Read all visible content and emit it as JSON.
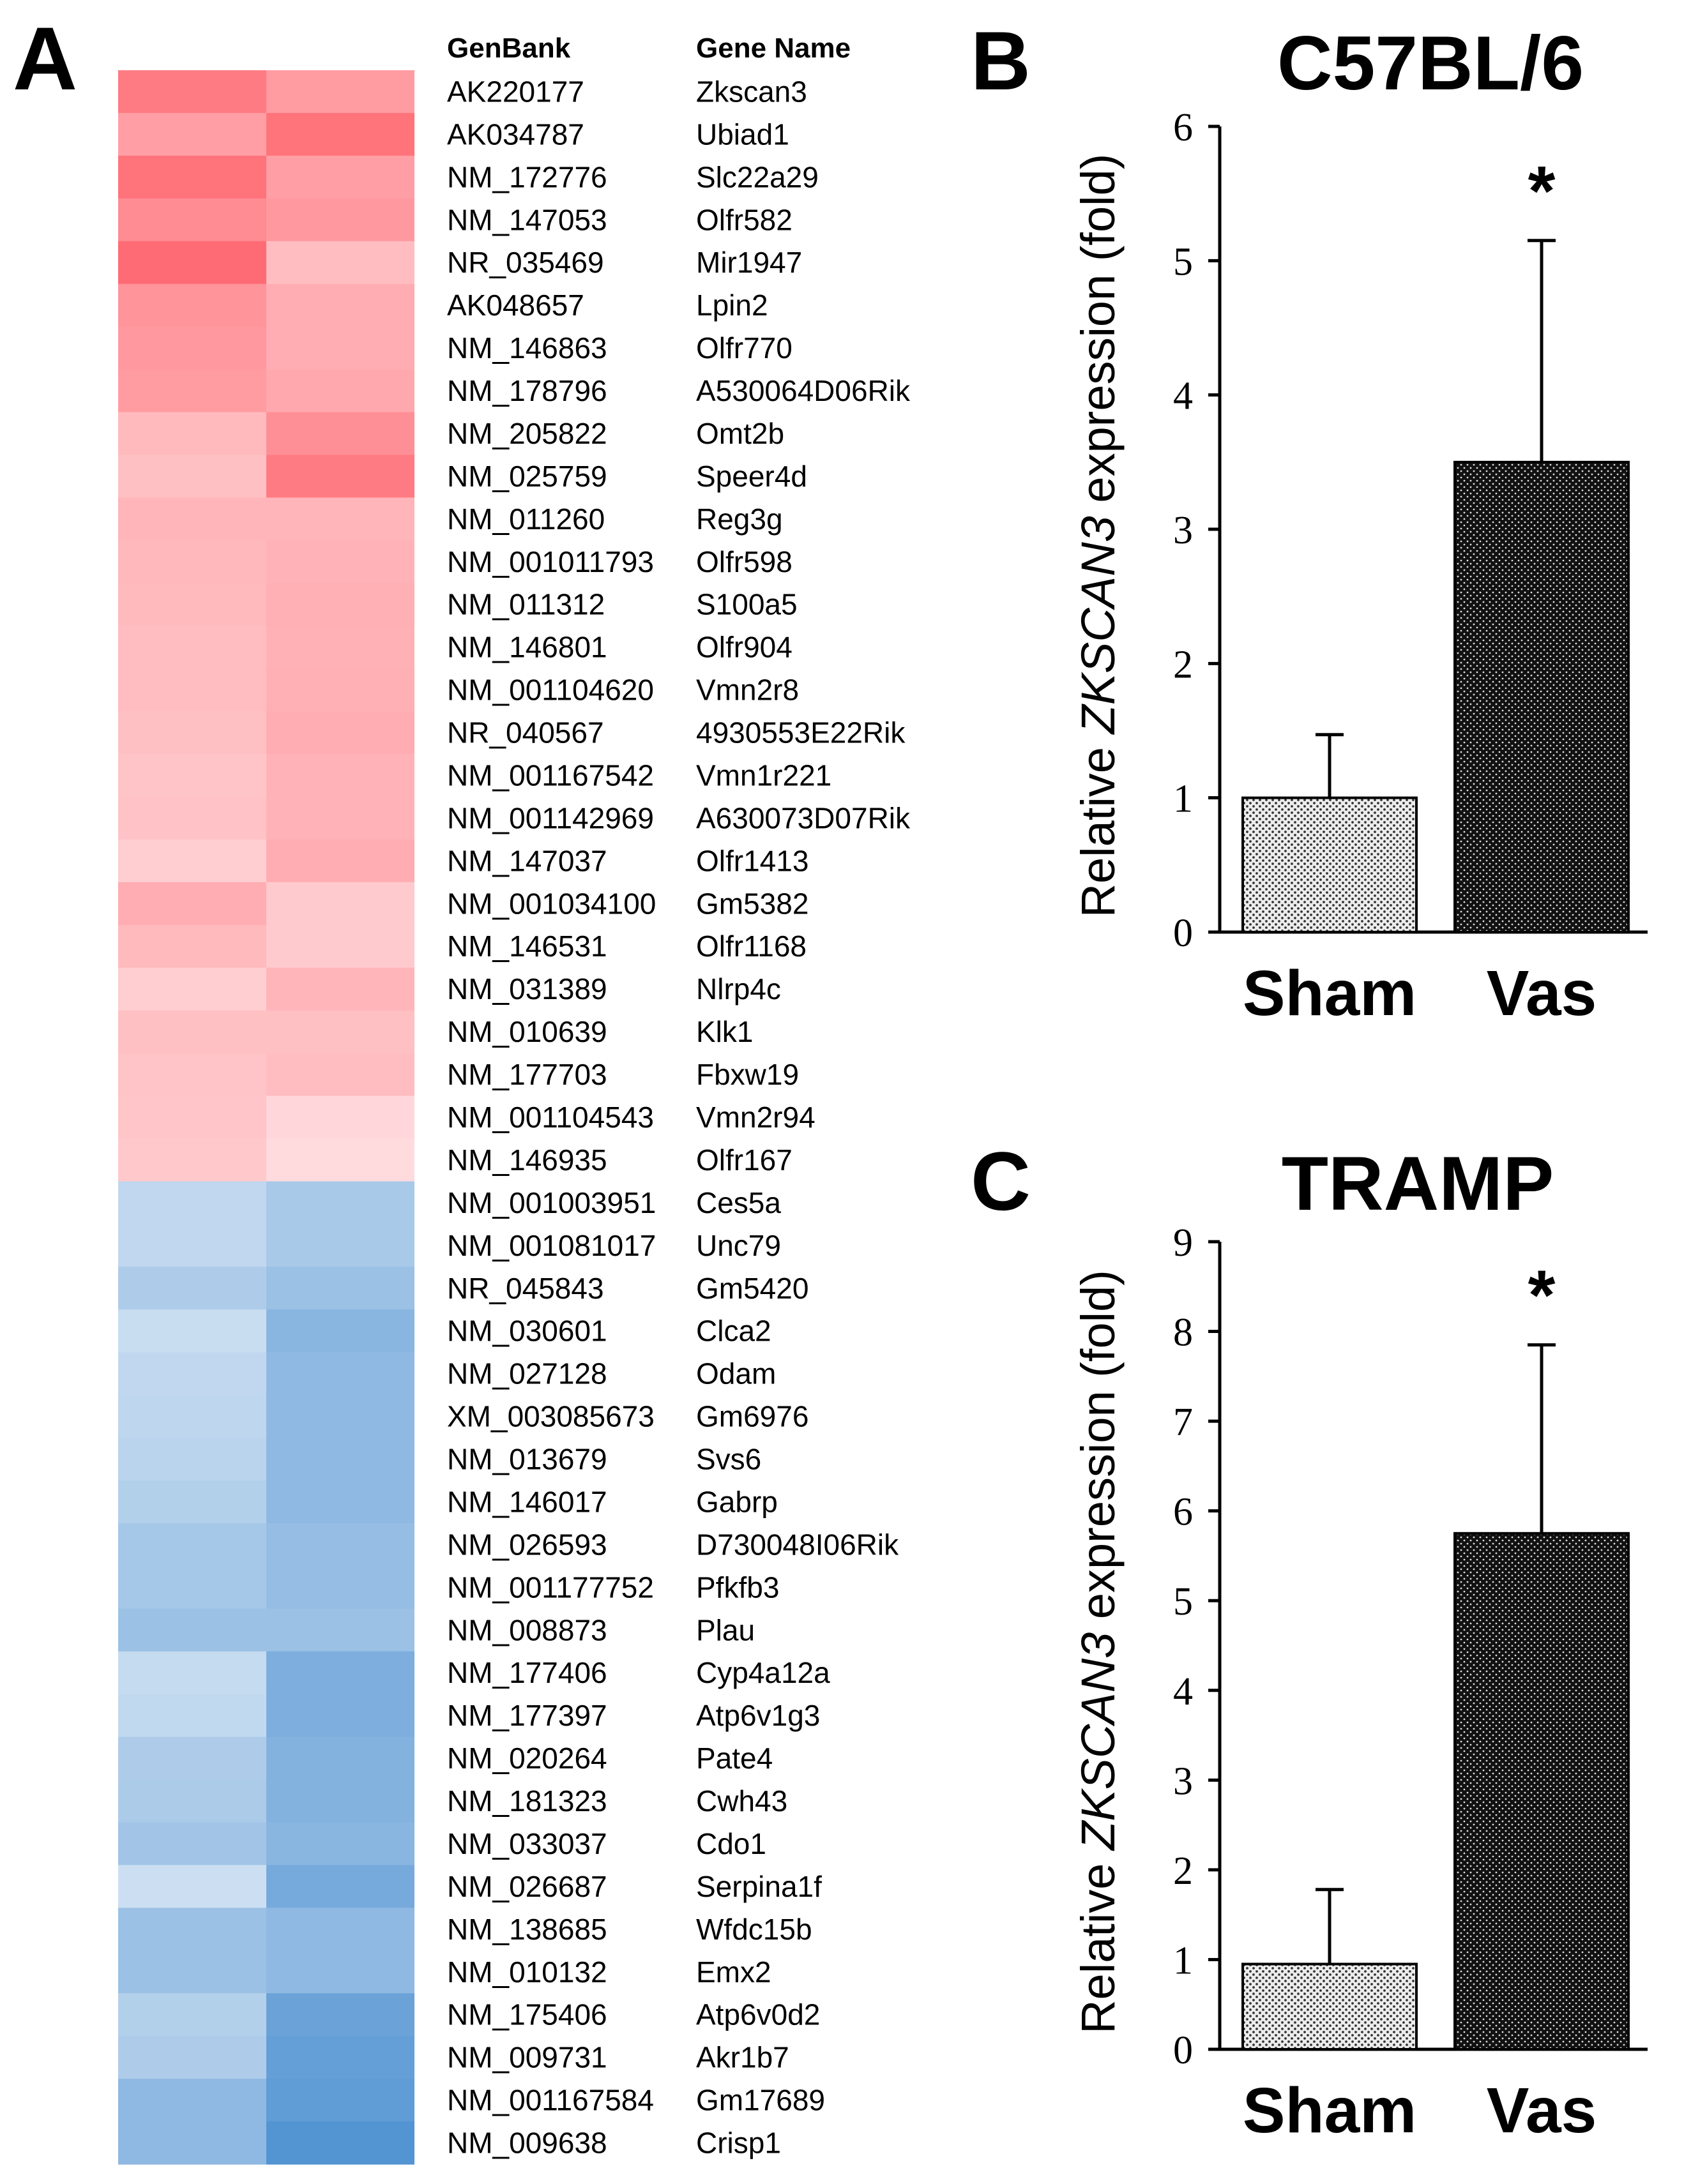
{
  "chart_data": [
    {
      "type": "heatmap",
      "panel_label": "A",
      "columns_header": {
        "genbank": "GenBank",
        "gene_name": "Gene Name"
      },
      "rows": [
        {
          "genbank": "AK220177",
          "gene": "Zkscan3",
          "values": [
            0.8,
            0.6
          ]
        },
        {
          "genbank": "AK034787",
          "gene": "Ubiad1",
          "values": [
            0.58,
            0.85
          ]
        },
        {
          "genbank": "NM_172776",
          "gene": "Slc22a29",
          "values": [
            0.85,
            0.58
          ]
        },
        {
          "genbank": "NM_147053",
          "gene": "Olfr582",
          "values": [
            0.7,
            0.62
          ]
        },
        {
          "genbank": "NR_035469",
          "gene": "Mir1947",
          "values": [
            0.9,
            0.4
          ]
        },
        {
          "genbank": "AK048657",
          "gene": "Lpin2",
          "values": [
            0.65,
            0.5
          ]
        },
        {
          "genbank": "NM_146863",
          "gene": "Olfr770",
          "values": [
            0.62,
            0.5
          ]
        },
        {
          "genbank": "NM_178796",
          "gene": "A530064D06Rik",
          "values": [
            0.6,
            0.52
          ]
        },
        {
          "genbank": "NM_205822",
          "gene": "Omt2b",
          "values": [
            0.42,
            0.68
          ]
        },
        {
          "genbank": "NM_025759",
          "gene": "Speer4d",
          "values": [
            0.38,
            0.8
          ]
        },
        {
          "genbank": "NM_011260",
          "gene": "Reg3g",
          "values": [
            0.45,
            0.45
          ]
        },
        {
          "genbank": "NM_001011793",
          "gene": "Olfr598",
          "values": [
            0.43,
            0.46
          ]
        },
        {
          "genbank": "NM_011312",
          "gene": "S100a5",
          "values": [
            0.42,
            0.48
          ]
        },
        {
          "genbank": "NM_146801",
          "gene": "Olfr904",
          "values": [
            0.4,
            0.47
          ]
        },
        {
          "genbank": "NM_001104620",
          "gene": "Vmn2r8",
          "values": [
            0.4,
            0.48
          ]
        },
        {
          "genbank": "NR_040567",
          "gene": "4930553E22Rik",
          "values": [
            0.38,
            0.5
          ]
        },
        {
          "genbank": "NM_001167542",
          "gene": "Vmn1r221",
          "values": [
            0.36,
            0.46
          ]
        },
        {
          "genbank": "NM_001142969",
          "gene": "A630073D07Rik",
          "values": [
            0.37,
            0.46
          ]
        },
        {
          "genbank": "NM_147037",
          "gene": "Olfr1413",
          "values": [
            0.3,
            0.5
          ]
        },
        {
          "genbank": "NM_001034100",
          "gene": "Gm5382",
          "values": [
            0.5,
            0.32
          ]
        },
        {
          "genbank": "NM_146531",
          "gene": "Olfr1168",
          "values": [
            0.42,
            0.32
          ]
        },
        {
          "genbank": "NM_031389",
          "gene": "Nlrp4c",
          "values": [
            0.3,
            0.45
          ]
        },
        {
          "genbank": "NM_010639",
          "gene": "Klk1",
          "values": [
            0.38,
            0.38
          ]
        },
        {
          "genbank": "NM_177703",
          "gene": "Fbxw19",
          "values": [
            0.36,
            0.4
          ]
        },
        {
          "genbank": "NM_001104543",
          "gene": "Vmn2r94",
          "values": [
            0.35,
            0.24
          ]
        },
        {
          "genbank": "NM_146935",
          "gene": "Olfr167",
          "values": [
            0.33,
            0.22
          ]
        },
        {
          "genbank": "NM_001003951",
          "gene": "Ces5a",
          "values": [
            -0.35,
            -0.48
          ]
        },
        {
          "genbank": "NM_001081017",
          "gene": "Unc79",
          "values": [
            -0.35,
            -0.48
          ]
        },
        {
          "genbank": "NR_045843",
          "gene": "Gm5420",
          "values": [
            -0.45,
            -0.55
          ]
        },
        {
          "genbank": "NM_030601",
          "gene": "Clca2",
          "values": [
            -0.3,
            -0.65
          ]
        },
        {
          "genbank": "NM_027128",
          "gene": "Odam",
          "values": [
            -0.35,
            -0.62
          ]
        },
        {
          "genbank": "XM_003085673",
          "gene": "Gm6976",
          "values": [
            -0.36,
            -0.62
          ]
        },
        {
          "genbank": "NM_013679",
          "gene": "Svs6",
          "values": [
            -0.38,
            -0.62
          ]
        },
        {
          "genbank": "NM_146017",
          "gene": "Gabrp",
          "values": [
            -0.42,
            -0.62
          ]
        },
        {
          "genbank": "NM_026593",
          "gene": "D730048I06Rik",
          "values": [
            -0.5,
            -0.58
          ]
        },
        {
          "genbank": "NM_001177752",
          "gene": "Pfkfb3",
          "values": [
            -0.5,
            -0.58
          ]
        },
        {
          "genbank": "NM_008873",
          "gene": "Plau",
          "values": [
            -0.55,
            -0.55
          ]
        },
        {
          "genbank": "NM_177406",
          "gene": "Cyp4a12a",
          "values": [
            -0.32,
            -0.72
          ]
        },
        {
          "genbank": "NM_177397",
          "gene": "Atp6v1g3",
          "values": [
            -0.34,
            -0.72
          ]
        },
        {
          "genbank": "NM_020264",
          "gene": "Pate4",
          "values": [
            -0.45,
            -0.68
          ]
        },
        {
          "genbank": "NM_181323",
          "gene": "Cwh43",
          "values": [
            -0.46,
            -0.68
          ]
        },
        {
          "genbank": "NM_033037",
          "gene": "Cdo1",
          "values": [
            -0.52,
            -0.65
          ]
        },
        {
          "genbank": "NM_026687",
          "gene": "Serpina1f",
          "values": [
            -0.28,
            -0.75
          ]
        },
        {
          "genbank": "NM_138685",
          "gene": "Wfdc15b",
          "values": [
            -0.55,
            -0.62
          ]
        },
        {
          "genbank": "NM_010132",
          "gene": "Emx2",
          "values": [
            -0.55,
            -0.62
          ]
        },
        {
          "genbank": "NM_175406",
          "gene": "Atp6v0d2",
          "values": [
            -0.42,
            -0.82
          ]
        },
        {
          "genbank": "NM_009731",
          "gene": "Akr1b7",
          "values": [
            -0.45,
            -0.85
          ]
        },
        {
          "genbank": "NM_001167584",
          "gene": "Gm17689",
          "values": [
            -0.62,
            -0.88
          ]
        },
        {
          "genbank": "NM_009638",
          "gene": "Crisp1",
          "values": [
            -0.62,
            -0.95
          ]
        }
      ],
      "colors": {
        "up": "#ff5a64",
        "down": "#4a8ed0",
        "neutral": "#ffffff"
      }
    },
    {
      "type": "bar",
      "panel_label": "B",
      "title": "C57BL/6",
      "categories": [
        "Sham",
        "Vas"
      ],
      "values": [
        1.0,
        3.5
      ],
      "errors": [
        0.47,
        1.65
      ],
      "significance": [
        "",
        "*"
      ],
      "ylabel_prefix": "Relative ",
      "ylabel_gene": "ZKSCAN3",
      "ylabel_suffix": " expression (fold)",
      "ylim": [
        0,
        6
      ],
      "yticks": [
        0,
        1,
        2,
        3,
        4,
        5,
        6
      ]
    },
    {
      "type": "bar",
      "panel_label": "C",
      "title": "TRAMP",
      "categories": [
        "Sham",
        "Vas"
      ],
      "values": [
        0.95,
        5.75
      ],
      "errors": [
        0.83,
        2.1
      ],
      "significance": [
        "",
        "*"
      ],
      "ylabel_prefix": "Relative ",
      "ylabel_gene": "ZKSCAN3",
      "ylabel_suffix": " expression (fold)",
      "ylim": [
        0,
        9
      ],
      "yticks": [
        0,
        1,
        2,
        3,
        4,
        5,
        6,
        7,
        8,
        9
      ]
    }
  ]
}
